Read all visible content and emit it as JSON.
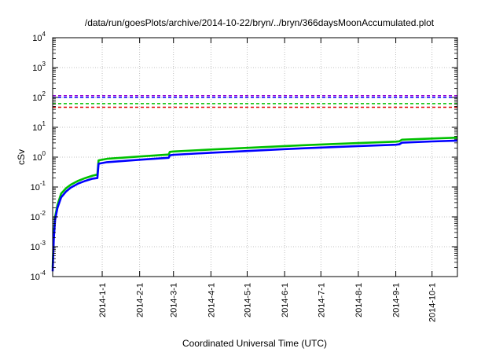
{
  "chart_data": {
    "type": "line",
    "title": "/data/run/goesPlots/archive/2014-10-22/bryn/../bryn/366daysMoonAccumulated.plot",
    "xlabel": "Coordinated Universal Time (UTC)",
    "ylabel": "cSv",
    "yscale": "log",
    "ylim": [
      0.0001,
      10000
    ],
    "xlim": [
      "2013-11-21",
      "2014-10-22"
    ],
    "grid": true,
    "y_ticks": [
      {
        "base": "10",
        "exp": "-4",
        "value": 0.0001
      },
      {
        "base": "10",
        "exp": "-3",
        "value": 0.001
      },
      {
        "base": "10",
        "exp": "-2",
        "value": 0.01
      },
      {
        "base": "10",
        "exp": "-1",
        "value": 0.1
      },
      {
        "base": "10",
        "exp": "0",
        "value": 1
      },
      {
        "base": "10",
        "exp": "1",
        "value": 10
      },
      {
        "base": "10",
        "exp": "2",
        "value": 100
      },
      {
        "base": "10",
        "exp": "3",
        "value": 1000
      },
      {
        "base": "10",
        "exp": "4",
        "value": 10000
      }
    ],
    "x_ticks": [
      "2014-1-1",
      "2014-2-1",
      "2014-3-1",
      "2014-4-1",
      "2014-5-1",
      "2014-6-1",
      "2014-7-1",
      "2014-8-1",
      "2014-9-1",
      "2014-10-1"
    ],
    "reference_lines": [
      {
        "value": 115,
        "color": "#9400d3"
      },
      {
        "value": 100,
        "color": "#0000ff"
      },
      {
        "value": 62,
        "color": "#00c000"
      },
      {
        "value": 47,
        "color": "#e00000"
      }
    ],
    "series": [
      {
        "color": "#00c000",
        "x": [
          "2013-11-21",
          "2013-11-22",
          "2013-11-23",
          "2013-11-25",
          "2013-11-28",
          "2013-12-02",
          "2013-12-06",
          "2013-12-12",
          "2013-12-18",
          "2013-12-24",
          "2013-12-28",
          "2013-12-29",
          "2014-01-05",
          "2014-02-01",
          "2014-02-25",
          "2014-02-26",
          "2014-03-01",
          "2014-04-01",
          "2014-05-01",
          "2014-06-01",
          "2014-07-01",
          "2014-08-01",
          "2014-09-01",
          "2014-09-04",
          "2014-09-06",
          "2014-10-01",
          "2014-10-22"
        ],
        "values": [
          0.0002,
          0.003,
          0.01,
          0.025,
          0.06,
          0.09,
          0.12,
          0.16,
          0.2,
          0.24,
          0.26,
          0.78,
          0.88,
          1.05,
          1.22,
          1.5,
          1.55,
          1.8,
          2.05,
          2.35,
          2.65,
          2.95,
          3.3,
          3.4,
          3.85,
          4.2,
          4.5
        ]
      },
      {
        "color": "#0000ff",
        "x": [
          "2013-11-21",
          "2013-11-22",
          "2013-11-23",
          "2013-11-25",
          "2013-11-28",
          "2013-12-02",
          "2013-12-06",
          "2013-12-12",
          "2013-12-18",
          "2013-12-24",
          "2013-12-28",
          "2013-12-29",
          "2014-01-05",
          "2014-02-01",
          "2014-02-25",
          "2014-02-26",
          "2014-03-01",
          "2014-04-01",
          "2014-05-01",
          "2014-06-01",
          "2014-07-01",
          "2014-08-01",
          "2014-09-01",
          "2014-09-04",
          "2014-09-06",
          "2014-10-01",
          "2014-10-22"
        ],
        "values": [
          0.00015,
          0.002,
          0.008,
          0.02,
          0.045,
          0.07,
          0.095,
          0.13,
          0.16,
          0.19,
          0.2,
          0.6,
          0.68,
          0.82,
          0.95,
          1.15,
          1.2,
          1.4,
          1.6,
          1.85,
          2.1,
          2.35,
          2.6,
          2.7,
          3.05,
          3.35,
          3.6
        ]
      }
    ]
  }
}
